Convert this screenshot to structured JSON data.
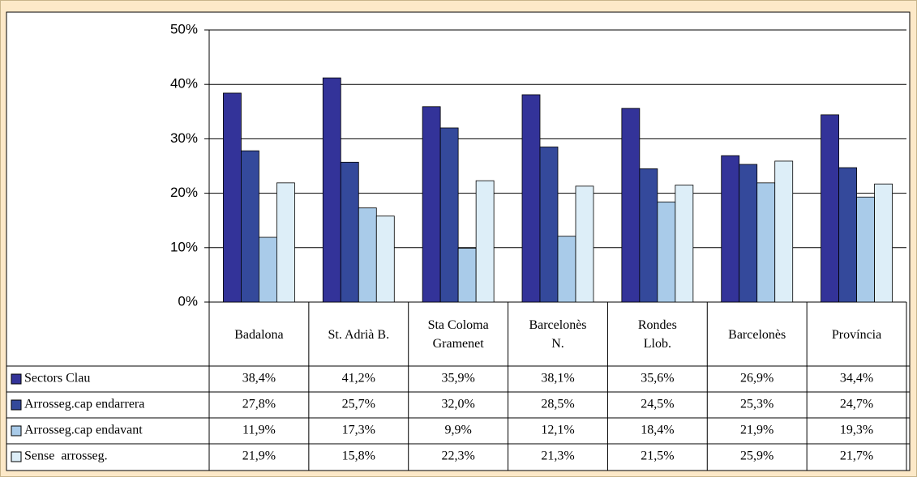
{
  "chart_data": {
    "type": "bar",
    "categories": [
      "Badalona",
      "St. Adrià B.",
      "Sta Coloma\nGramenet",
      "Barcelonès\nN.",
      "Rondes\nLlob.",
      "Barcelonès",
      "Província"
    ],
    "series": [
      {
        "name": "Sectors Clau",
        "color": "#333399",
        "values": [
          38.4,
          41.2,
          35.9,
          38.1,
          35.6,
          26.9,
          34.4
        ],
        "value_labels": [
          "38,4%",
          "41,2%",
          "35,9%",
          "38,1%",
          "35,6%",
          "26,9%",
          "34,4%"
        ]
      },
      {
        "name": "Arrosseg.cap endarrera",
        "color": "#34499b",
        "values": [
          27.8,
          25.7,
          32.0,
          28.5,
          24.5,
          25.3,
          24.7
        ],
        "value_labels": [
          "27,8%",
          "25,7%",
          "32,0%",
          "28,5%",
          "24,5%",
          "25,3%",
          "24,7%"
        ]
      },
      {
        "name": "Arrosseg.cap endavant",
        "color": "#a9cbe9",
        "values": [
          11.9,
          17.3,
          9.9,
          12.1,
          18.4,
          21.9,
          19.3
        ],
        "value_labels": [
          "11,9%",
          "17,3%",
          "9,9%",
          "12,1%",
          "18,4%",
          "21,9%",
          "19,3%"
        ]
      },
      {
        "name": "Sense  arrosseg.",
        "color": "#ddeef8",
        "values": [
          21.9,
          15.8,
          22.3,
          21.3,
          21.5,
          25.9,
          21.7
        ],
        "value_labels": [
          "21,9%",
          "15,8%",
          "22,3%",
          "21,3%",
          "21,5%",
          "25,9%",
          "21,7%"
        ]
      }
    ],
    "ylim": [
      0,
      50
    ],
    "yticks": [
      {
        "value": 0,
        "label": "0%"
      },
      {
        "value": 10,
        "label": "10%"
      },
      {
        "value": 20,
        "label": "20%"
      },
      {
        "value": 30,
        "label": "30%"
      },
      {
        "value": 40,
        "label": "40%"
      },
      {
        "value": 50,
        "label": "50%"
      }
    ],
    "grid": true
  }
}
